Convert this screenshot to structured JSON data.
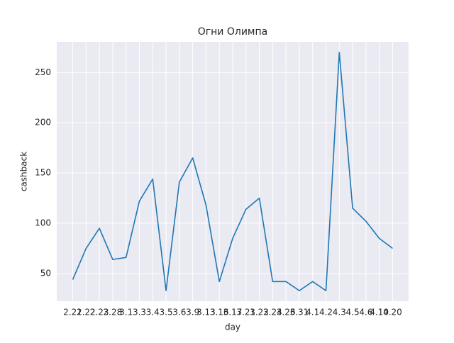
{
  "chart_data": {
    "type": "line",
    "title": "Огни Олимпа",
    "x_label": "day",
    "y_label": "cashback",
    "categories": [
      "2.21",
      "2.22",
      "2.23",
      "2.28",
      "3.1",
      "3.3",
      "3.4",
      "3.5",
      "3.6",
      "3.9",
      "3.13",
      "3.16",
      "3.17",
      "3.21",
      "3.22",
      "3.24",
      "3.26",
      "3.31",
      "4.1",
      "4.2",
      "4.3",
      "4.5",
      "4.6",
      "4.10",
      "4.20"
    ],
    "series": [
      {
        "name": "cashback",
        "color": "#1f77b4",
        "values": [
          44,
          75,
          95,
          64,
          66,
          122,
          144,
          33,
          141,
          165,
          118,
          42,
          85,
          114,
          125,
          42,
          42,
          33,
          42,
          33,
          270,
          115,
          102,
          85,
          75
        ]
      }
    ],
    "ylim": [
      22.5,
      280.5
    ],
    "yticks": [
      50,
      100,
      150,
      200,
      250
    ],
    "grid": true,
    "legend": false
  }
}
